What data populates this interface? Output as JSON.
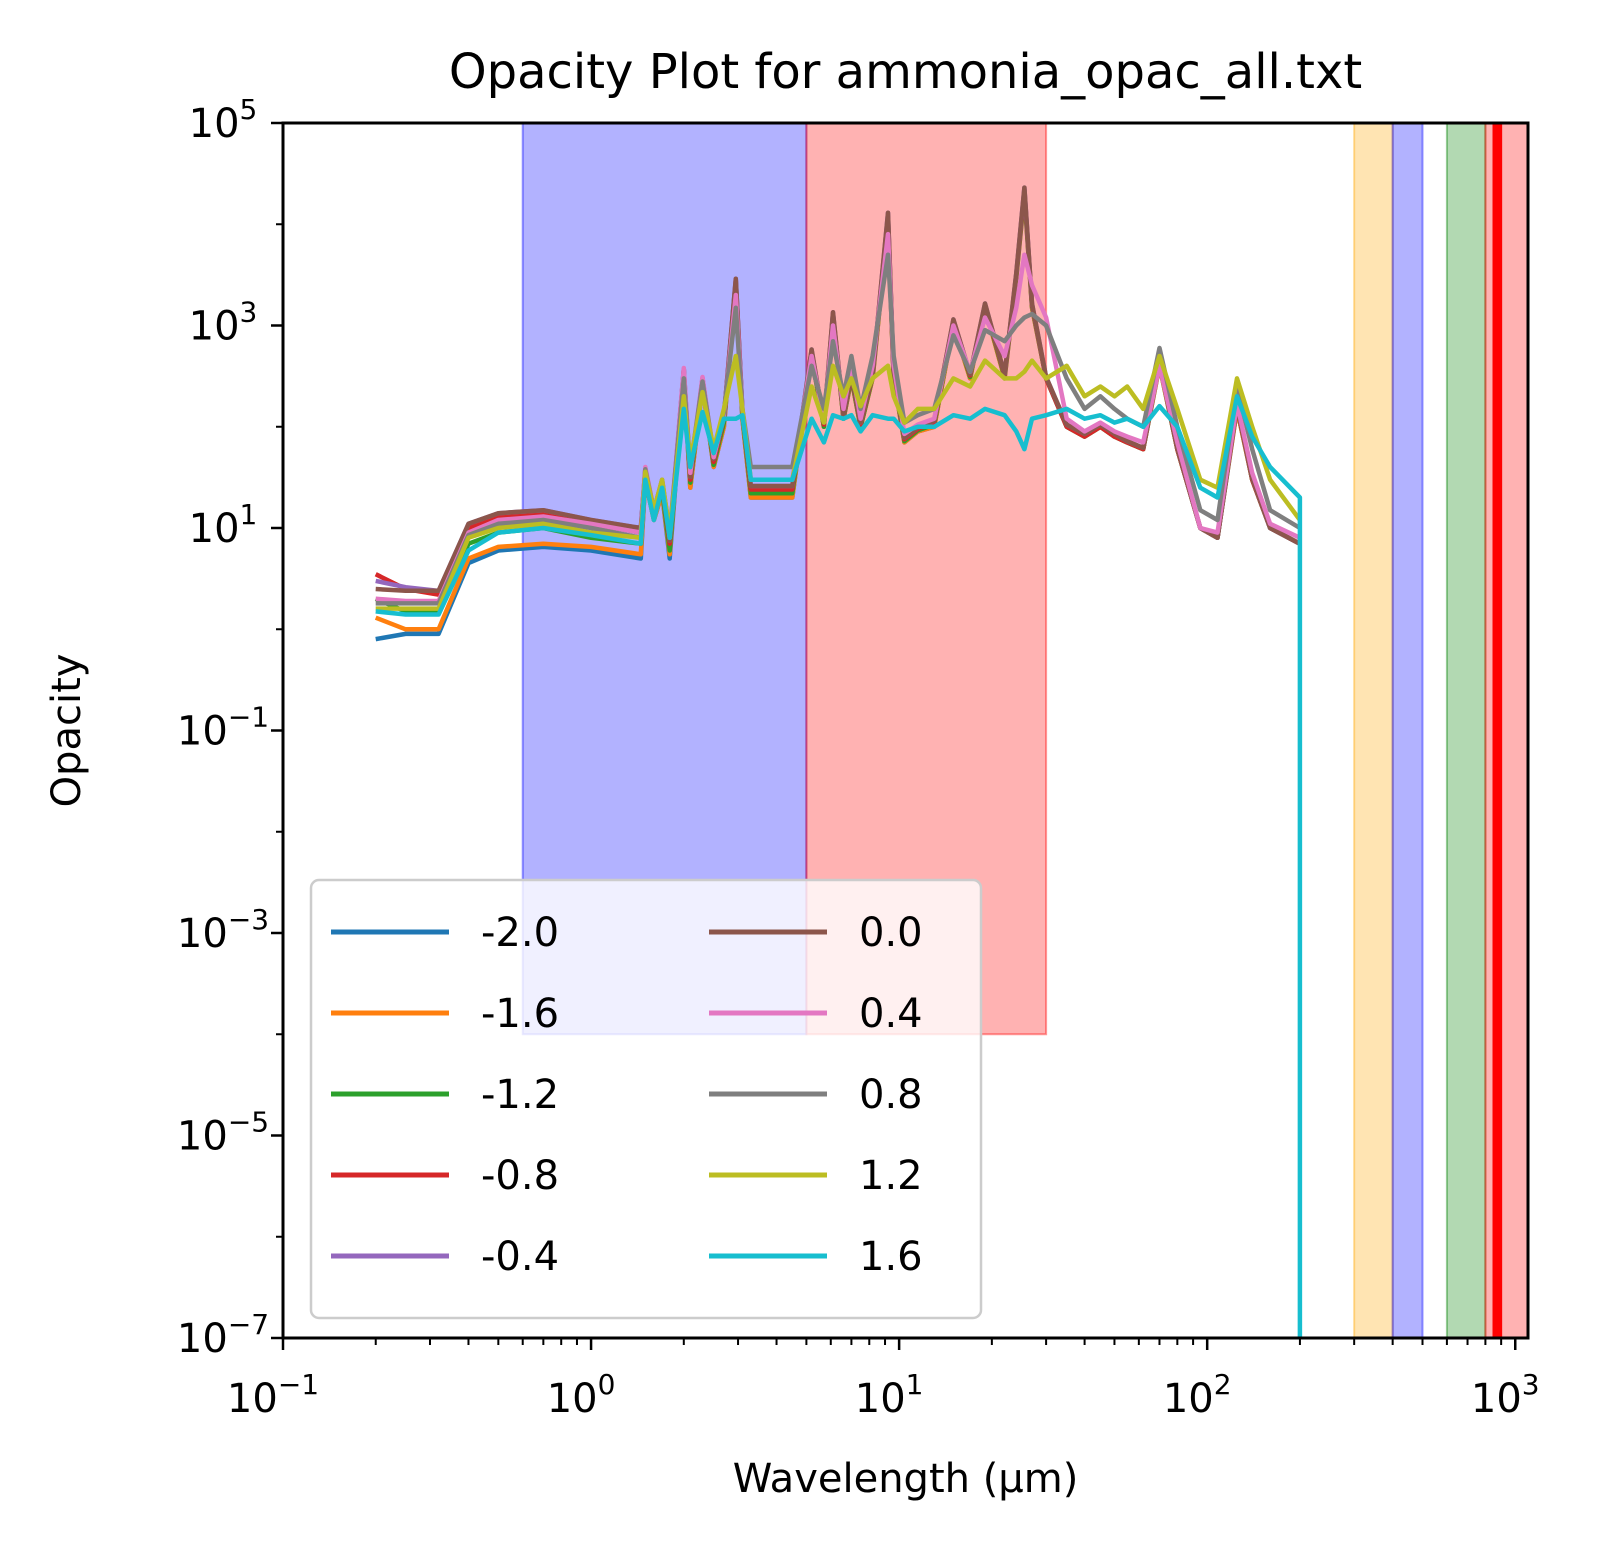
{
  "chart_data": {
    "type": "line",
    "title": "Opacity Plot for ammonia_opac_all.txt",
    "xlabel": "Wavelength (μm)",
    "ylabel": "Opacity",
    "xscale": "log",
    "yscale": "log",
    "xlim": [
      0.1,
      1100
    ],
    "ylim": [
      1e-07,
      100000
    ],
    "grid": false,
    "legend": {
      "placement": "lower-left",
      "columns": 2
    },
    "x_ticks": [
      {
        "value": 0.1,
        "mantissa": "10",
        "exp": "−1"
      },
      {
        "value": 1,
        "mantissa": "10",
        "exp": "0"
      },
      {
        "value": 10,
        "mantissa": "10",
        "exp": "1"
      },
      {
        "value": 100,
        "mantissa": "10",
        "exp": "2"
      },
      {
        "value": 1000,
        "mantissa": "10",
        "exp": "3"
      }
    ],
    "y_ticks": [
      {
        "value": 1e-07,
        "mantissa": "10",
        "exp": "−7"
      },
      {
        "value": 1e-05,
        "mantissa": "10",
        "exp": "−5"
      },
      {
        "value": 0.001,
        "mantissa": "10",
        "exp": "−3"
      },
      {
        "value": 0.1,
        "mantissa": "10",
        "exp": "−1"
      },
      {
        "value": 10,
        "mantissa": "10",
        "exp": "1"
      },
      {
        "value": 1000,
        "mantissa": "10",
        "exp": "3"
      },
      {
        "value": 100000,
        "mantissa": "10",
        "exp": "5"
      }
    ],
    "bands": [
      {
        "x0": 0.6,
        "x1": 5,
        "y0": 0.0001,
        "y1": 100000,
        "color": "#0000ff",
        "opacity": 0.3
      },
      {
        "x0": 5,
        "x1": 30,
        "y0": 0.0001,
        "y1": 100000,
        "color": "#ff0000",
        "opacity": 0.3
      },
      {
        "x0": 300,
        "x1": 400,
        "y0": 1e-07,
        "y1": 100000,
        "color": "#ffa500",
        "opacity": 0.3
      },
      {
        "x0": 400,
        "x1": 500,
        "y0": 1e-07,
        "y1": 100000,
        "color": "#0000ff",
        "opacity": 0.3
      },
      {
        "x0": 600,
        "x1": 800,
        "y0": 1e-07,
        "y1": 100000,
        "color": "#008000",
        "opacity": 0.3
      },
      {
        "x0": 800,
        "x1": 1100,
        "y0": 1e-07,
        "y1": 100000,
        "color": "#ff0000",
        "opacity": 0.3
      },
      {
        "x0": 850,
        "x1": 900,
        "y0": 1e-07,
        "y1": 100000,
        "color": "#ff0000",
        "opacity": 1.0
      }
    ],
    "x": [
      0.2,
      0.25,
      0.32,
      0.4,
      0.5,
      0.7,
      1.0,
      1.45,
      1.5,
      1.6,
      1.7,
      1.8,
      2.0,
      2.1,
      2.3,
      2.5,
      2.7,
      2.95,
      3.1,
      3.3,
      4.0,
      4.5,
      5.2,
      5.7,
      6.1,
      6.6,
      7.0,
      7.5,
      8.2,
      9.2,
      9.6,
      10.4,
      11.5,
      13.0,
      15.0,
      17.0,
      19.0,
      22.0,
      24.0,
      25.5,
      27.0,
      30.0,
      35.0,
      40.0,
      45.0,
      50.0,
      55.0,
      62.0,
      70.0,
      80.0,
      95.0,
      108.0,
      125.0,
      140.0,
      160.0,
      200.0
    ],
    "series": [
      {
        "name": "-2.0",
        "color": "#1f77b4",
        "values": [
          0.8,
          0.9,
          0.9,
          4.5,
          6,
          6.5,
          6,
          5,
          30,
          12,
          22,
          5,
          300,
          25,
          250,
          40,
          100,
          2500,
          120,
          20,
          20,
          20,
          500,
          100,
          1200,
          120,
          300,
          100,
          300,
          10000,
          300,
          70,
          90,
          100,
          1000,
          300,
          1500,
          300,
          3000,
          20000,
          1500,
          300,
          100,
          80,
          100,
          80,
          70,
          60,
          400,
          60,
          10,
          8,
          150,
          30,
          10,
          7
        ]
      },
      {
        "name": "-1.6",
        "color": "#ff7f0e",
        "values": [
          1.3,
          1.0,
          1.0,
          5,
          6.5,
          7,
          6.5,
          5.5,
          30,
          12,
          22,
          5.5,
          300,
          25,
          250,
          40,
          100,
          2500,
          120,
          20,
          20,
          20,
          500,
          100,
          1200,
          120,
          300,
          100,
          300,
          10000,
          300,
          70,
          90,
          100,
          1000,
          300,
          1500,
          300,
          3000,
          20000,
          1500,
          300,
          100,
          80,
          100,
          80,
          70,
          60,
          400,
          60,
          10,
          8,
          150,
          30,
          10,
          7
        ]
      },
      {
        "name": "-1.2",
        "color": "#2ca02c",
        "values": [
          2.0,
          1.5,
          1.5,
          7,
          9,
          10,
          8,
          7,
          32,
          13,
          24,
          6,
          320,
          28,
          270,
          42,
          110,
          2600,
          130,
          22,
          22,
          22,
          520,
          100,
          1250,
          120,
          310,
          100,
          310,
          11000,
          310,
          72,
          92,
          105,
          1050,
          310,
          1550,
          310,
          3100,
          21000,
          1550,
          300,
          100,
          80,
          100,
          80,
          70,
          60,
          420,
          60,
          10,
          8,
          160,
          30,
          10,
          7
        ]
      },
      {
        "name": "-0.8",
        "color": "#d62728",
        "values": [
          3.5,
          2.5,
          2.2,
          10,
          13,
          14,
          11,
          9,
          35,
          14,
          26,
          7,
          350,
          30,
          290,
          45,
          120,
          2800,
          140,
          24,
          24,
          24,
          560,
          105,
          1300,
          125,
          320,
          105,
          320,
          12000,
          320,
          75,
          95,
          110,
          1100,
          320,
          1600,
          320,
          3200,
          22000,
          1600,
          300,
          100,
          80,
          100,
          80,
          70,
          60,
          430,
          60,
          10,
          8,
          160,
          30,
          10,
          7
        ]
      },
      {
        "name": "-0.4",
        "color": "#9467bd",
        "values": [
          3.0,
          2.6,
          2.4,
          11,
          14,
          15,
          12,
          10,
          38,
          15,
          28,
          7.5,
          370,
          32,
          300,
          48,
          125,
          2900,
          145,
          26,
          26,
          26,
          580,
          110,
          1350,
          130,
          330,
          110,
          330,
          13000,
          330,
          78,
          98,
          115,
          1150,
          330,
          1650,
          330,
          3300,
          23000,
          1650,
          310,
          105,
          85,
          105,
          85,
          72,
          62,
          440,
          62,
          10,
          8,
          165,
          31,
          10,
          7
        ]
      },
      {
        "name": "0.0",
        "color": "#8c564b",
        "values": [
          2.5,
          2.4,
          2.4,
          11,
          14,
          15,
          12,
          10,
          38,
          15,
          28,
          7.5,
          370,
          32,
          300,
          48,
          125,
          2900,
          145,
          26,
          26,
          26,
          580,
          110,
          1350,
          130,
          330,
          110,
          330,
          13000,
          330,
          78,
          98,
          115,
          1150,
          330,
          1650,
          330,
          3300,
          23000,
          1650,
          310,
          105,
          85,
          105,
          85,
          72,
          62,
          440,
          62,
          10,
          8,
          165,
          31,
          10,
          7
        ]
      },
      {
        "name": "0.4",
        "color": "#e377c2",
        "values": [
          2.0,
          1.9,
          1.9,
          9,
          12,
          13,
          11,
          9,
          40,
          15,
          30,
          8,
          380,
          35,
          310,
          50,
          130,
          2000,
          150,
          30,
          30,
          30,
          500,
          120,
          1000,
          150,
          400,
          120,
          400,
          8000,
          400,
          85,
          105,
          120,
          1000,
          350,
          1200,
          500,
          1500,
          5000,
          2500,
          1200,
          120,
          90,
          110,
          90,
          80,
          70,
          400,
          70,
          10,
          9,
          170,
          35,
          11,
          8
        ]
      },
      {
        "name": "0.8",
        "color": "#7f7f7f",
        "values": [
          1.8,
          1.8,
          1.8,
          8.5,
          11,
          12,
          10,
          8,
          38,
          15,
          30,
          9,
          300,
          40,
          280,
          55,
          140,
          1500,
          150,
          40,
          40,
          40,
          400,
          150,
          700,
          200,
          500,
          150,
          500,
          5000,
          500,
          110,
          130,
          150,
          800,
          350,
          900,
          700,
          1000,
          1200,
          1300,
          1000,
          300,
          150,
          200,
          150,
          120,
          100,
          600,
          100,
          15,
          12,
          250,
          60,
          15,
          10
        ]
      },
      {
        "name": "1.2",
        "color": "#bcbd22",
        "values": [
          1.6,
          1.6,
          1.6,
          8,
          10,
          11,
          9,
          8,
          36,
          15,
          30,
          9,
          200,
          45,
          220,
          60,
          150,
          500,
          150,
          30,
          30,
          30,
          250,
          110,
          400,
          200,
          300,
          160,
          300,
          400,
          200,
          110,
          150,
          150,
          300,
          250,
          450,
          300,
          300,
          350,
          450,
          300,
          400,
          200,
          250,
          200,
          250,
          150,
          500,
          150,
          30,
          25,
          300,
          100,
          30,
          12
        ]
      },
      {
        "name": "1.6",
        "color": "#17becf",
        "values": [
          1.5,
          1.4,
          1.4,
          6,
          9,
          10,
          8.5,
          7,
          30,
          12,
          25,
          8,
          150,
          40,
          140,
          55,
          120,
          120,
          130,
          30,
          30,
          30,
          120,
          70,
          130,
          120,
          130,
          90,
          130,
          120,
          120,
          90,
          100,
          100,
          130,
          120,
          150,
          130,
          90,
          60,
          120,
          130,
          150,
          120,
          130,
          110,
          120,
          100,
          160,
          100,
          25,
          20,
          200,
          80,
          40,
          20
        ]
      }
    ]
  }
}
